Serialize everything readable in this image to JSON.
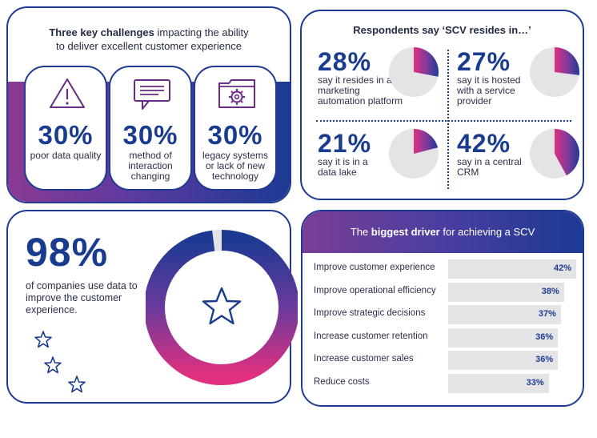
{
  "challenges": {
    "title_bold": "Three key challenges",
    "title_rest": " impacting the ability",
    "title_line2": "to deliver excellent customer experience",
    "cards": [
      {
        "icon": "warning-triangle-icon",
        "pct": "30%",
        "label": "poor data quality"
      },
      {
        "icon": "chat-bubble-icon",
        "pct": "30%",
        "label": "method of interaction changing"
      },
      {
        "icon": "gear-folder-icon",
        "pct": "30%",
        "label": "legacy systems or lack of new technology"
      }
    ]
  },
  "scv": {
    "title": "Respondents say ‘SCV resides in…’",
    "stats": [
      {
        "pct": "28%",
        "value": 28,
        "text": "say it resides in a marketing automation platform"
      },
      {
        "pct": "27%",
        "value": 27,
        "text": "say it is hosted with a service provider"
      },
      {
        "pct": "21%",
        "value": 21,
        "text": "say it is in a data lake"
      },
      {
        "pct": "42%",
        "value": 42,
        "text": "say in a central CRM"
      }
    ]
  },
  "usage": {
    "pct": "98%",
    "value": 98,
    "text": "of companies use data to improve the customer experience."
  },
  "driver": {
    "title_pre": "The ",
    "title_bold": "biggest driver",
    "title_post": " for achieving a SCV",
    "rows": [
      {
        "label": "Improve customer experience",
        "value": 42,
        "text": "42%"
      },
      {
        "label": "Improve operational efficiency",
        "value": 38,
        "text": "38%"
      },
      {
        "label": "Improve strategic decisions",
        "value": 37,
        "text": "37%"
      },
      {
        "label": "Increase customer retention",
        "value": 36,
        "text": "36%"
      },
      {
        "label": "Increase customer sales",
        "value": 36,
        "text": "36%"
      },
      {
        "label": "Reduce costs",
        "value": 33,
        "text": "33%"
      }
    ]
  },
  "colors": {
    "navy": "#1a3c8f",
    "magenta": "#e0307f",
    "purple": "#6a3a9c",
    "bar_gray": "#e4e4e6"
  }
}
